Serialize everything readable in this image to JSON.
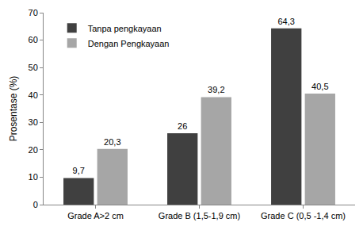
{
  "chart_data": {
    "type": "bar",
    "categories": [
      "Grade A>2 cm",
      "Grade B (1,5-1,9 cm)",
      "Grade C (0,5 -1,4 cm)"
    ],
    "series": [
      {
        "name": "Tanpa pengkayaan",
        "color": "#404040",
        "values": [
          9.7,
          26,
          64.3
        ],
        "value_labels": [
          "9,7",
          "26",
          "64,3"
        ]
      },
      {
        "name": "Dengan Pengkayaan",
        "color": "#a6a6a6",
        "values": [
          20.3,
          39.2,
          40.5
        ],
        "value_labels": [
          "20,3",
          "39,2",
          "40,5"
        ]
      }
    ],
    "y_label": "Prosentase (%)",
    "ylim": [
      0,
      70
    ],
    "yticks": [
      0,
      10,
      20,
      30,
      40,
      50,
      60,
      70
    ],
    "grid": false,
    "legend": "upper left",
    "data_labels": true
  }
}
